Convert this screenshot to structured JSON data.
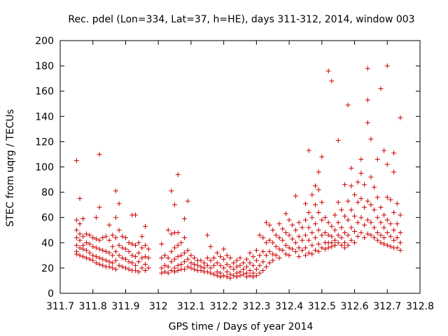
{
  "chart_data": {
    "type": "scatter",
    "title": "Rec. pdel (Lon=334, Lat=37, h=HE), days 311-312, 2014, window 003",
    "xlabel": "GPS time / Days of year 2014",
    "ylabel": "STEC from uqrg / TECUs",
    "xlim": [
      311.7,
      312.8
    ],
    "ylim": [
      0,
      200
    ],
    "x_ticks": [
      311.7,
      311.8,
      311.9,
      312.0,
      312.1,
      312.2,
      312.3,
      312.4,
      312.5,
      312.6,
      312.7,
      312.8
    ],
    "x_tick_labels": [
      "311.7",
      "311.8",
      "311.9",
      "312",
      "312.1",
      "312.2",
      "312.3",
      "312.4",
      "312.5",
      "312.6",
      "312.7",
      "312.8"
    ],
    "y_ticks": [
      0,
      20,
      40,
      60,
      80,
      100,
      120,
      140,
      160,
      180,
      200
    ],
    "y_tick_labels": [
      "0",
      "20",
      "40",
      "60",
      "80",
      "100",
      "120",
      "140",
      "160",
      "180",
      "200"
    ],
    "grid": false,
    "marker": "+",
    "color": "#cc0000",
    "points": [
      [
        311.75,
        105
      ],
      [
        311.76,
        75
      ],
      [
        311.82,
        110
      ],
      [
        311.87,
        81
      ],
      [
        311.88,
        71
      ],
      [
        311.92,
        62
      ],
      [
        311.96,
        53
      ],
      [
        312.04,
        81
      ],
      [
        312.05,
        70
      ],
      [
        312.06,
        94
      ],
      [
        312.08,
        59
      ],
      [
        312.09,
        73
      ],
      [
        312.46,
        113
      ],
      [
        312.48,
        85
      ],
      [
        312.49,
        96
      ],
      [
        312.5,
        108
      ],
      [
        312.52,
        176
      ],
      [
        312.53,
        168
      ],
      [
        312.55,
        121
      ],
      [
        312.57,
        86
      ],
      [
        312.58,
        149
      ],
      [
        312.59,
        99
      ],
      [
        312.62,
        106
      ],
      [
        312.64,
        178
      ],
      [
        312.64,
        153
      ],
      [
        312.64,
        135
      ],
      [
        312.65,
        122
      ],
      [
        312.67,
        106
      ],
      [
        312.68,
        162
      ],
      [
        312.69,
        113
      ],
      [
        312.7,
        180
      ],
      [
        312.7,
        102
      ],
      [
        312.72,
        96
      ],
      [
        312.72,
        111
      ],
      [
        312.74,
        139
      ],
      [
        311.75,
        58
      ],
      [
        311.75,
        50
      ],
      [
        311.75,
        44
      ],
      [
        311.75,
        38
      ],
      [
        311.75,
        33
      ],
      [
        311.75,
        31
      ],
      [
        311.76,
        55
      ],
      [
        311.76,
        47
      ],
      [
        311.76,
        42
      ],
      [
        311.76,
        36
      ],
      [
        311.76,
        30
      ],
      [
        311.77,
        59
      ],
      [
        311.77,
        45
      ],
      [
        311.77,
        38
      ],
      [
        311.77,
        35
      ],
      [
        311.77,
        29
      ],
      [
        311.78,
        47
      ],
      [
        311.78,
        40
      ],
      [
        311.78,
        34
      ],
      [
        311.78,
        28
      ],
      [
        311.79,
        46
      ],
      [
        311.79,
        39
      ],
      [
        311.79,
        32
      ],
      [
        311.79,
        27
      ],
      [
        311.8,
        44
      ],
      [
        311.8,
        37
      ],
      [
        311.8,
        30
      ],
      [
        311.8,
        26
      ],
      [
        311.81,
        60
      ],
      [
        311.81,
        43
      ],
      [
        311.81,
        36
      ],
      [
        311.81,
        29
      ],
      [
        311.81,
        24
      ],
      [
        311.82,
        68
      ],
      [
        311.82,
        42
      ],
      [
        311.82,
        35
      ],
      [
        311.82,
        28
      ],
      [
        311.82,
        23
      ],
      [
        311.83,
        44
      ],
      [
        311.83,
        34
      ],
      [
        311.83,
        27
      ],
      [
        311.83,
        22
      ],
      [
        311.84,
        45
      ],
      [
        311.84,
        33
      ],
      [
        311.84,
        26
      ],
      [
        311.84,
        21
      ],
      [
        311.85,
        54
      ],
      [
        311.85,
        42
      ],
      [
        311.85,
        32
      ],
      [
        311.85,
        25
      ],
      [
        311.85,
        21
      ],
      [
        311.86,
        46
      ],
      [
        311.86,
        37
      ],
      [
        311.86,
        30
      ],
      [
        311.86,
        24
      ],
      [
        311.86,
        20
      ],
      [
        311.87,
        60
      ],
      [
        311.87,
        44
      ],
      [
        311.87,
        33
      ],
      [
        311.87,
        26
      ],
      [
        311.87,
        19
      ],
      [
        311.88,
        50
      ],
      [
        311.88,
        38
      ],
      [
        311.88,
        30
      ],
      [
        311.88,
        22
      ],
      [
        311.89,
        45
      ],
      [
        311.89,
        36
      ],
      [
        311.89,
        28
      ],
      [
        311.89,
        21
      ],
      [
        311.9,
        44
      ],
      [
        311.9,
        35
      ],
      [
        311.9,
        27
      ],
      [
        311.9,
        20
      ],
      [
        311.91,
        40
      ],
      [
        311.91,
        33
      ],
      [
        311.91,
        25
      ],
      [
        311.91,
        19
      ],
      [
        311.92,
        39
      ],
      [
        311.92,
        30
      ],
      [
        311.92,
        24
      ],
      [
        311.92,
        18
      ],
      [
        311.93,
        62
      ],
      [
        311.93,
        38
      ],
      [
        311.93,
        29
      ],
      [
        311.93,
        22
      ],
      [
        311.93,
        18
      ],
      [
        311.94,
        40
      ],
      [
        311.94,
        32
      ],
      [
        311.94,
        25
      ],
      [
        311.94,
        17
      ],
      [
        311.95,
        45
      ],
      [
        311.95,
        36
      ],
      [
        311.95,
        28
      ],
      [
        311.95,
        20
      ],
      [
        311.96,
        38
      ],
      [
        311.96,
        29
      ],
      [
        311.96,
        23
      ],
      [
        311.96,
        18
      ],
      [
        311.97,
        35
      ],
      [
        311.97,
        28
      ],
      [
        311.97,
        20
      ],
      [
        312.01,
        39
      ],
      [
        312.01,
        28
      ],
      [
        312.01,
        20
      ],
      [
        312.01,
        16
      ],
      [
        312.02,
        30
      ],
      [
        312.02,
        22
      ],
      [
        312.02,
        17
      ],
      [
        312.03,
        50
      ],
      [
        312.03,
        28
      ],
      [
        312.03,
        21
      ],
      [
        312.03,
        16
      ],
      [
        312.04,
        47
      ],
      [
        312.04,
        33
      ],
      [
        312.04,
        25
      ],
      [
        312.04,
        18
      ],
      [
        312.05,
        48
      ],
      [
        312.05,
        36
      ],
      [
        312.05,
        27
      ],
      [
        312.05,
        20
      ],
      [
        312.05,
        17
      ],
      [
        312.06,
        48
      ],
      [
        312.06,
        38
      ],
      [
        312.06,
        29
      ],
      [
        312.06,
        22
      ],
      [
        312.06,
        18
      ],
      [
        312.07,
        40
      ],
      [
        312.07,
        30
      ],
      [
        312.07,
        23
      ],
      [
        312.07,
        19
      ],
      [
        312.08,
        44
      ],
      [
        312.08,
        32
      ],
      [
        312.08,
        25
      ],
      [
        312.08,
        19
      ],
      [
        312.09,
        34
      ],
      [
        312.09,
        27
      ],
      [
        312.09,
        21
      ],
      [
        312.1,
        30
      ],
      [
        312.1,
        24
      ],
      [
        312.1,
        20
      ],
      [
        312.11,
        28
      ],
      [
        312.11,
        23
      ],
      [
        312.11,
        19
      ],
      [
        312.12,
        26
      ],
      [
        312.12,
        22
      ],
      [
        312.12,
        18
      ],
      [
        312.13,
        26
      ],
      [
        312.13,
        21
      ],
      [
        312.13,
        18
      ],
      [
        312.14,
        24
      ],
      [
        312.14,
        20
      ],
      [
        312.14,
        17
      ],
      [
        312.15,
        46
      ],
      [
        312.15,
        28
      ],
      [
        312.15,
        22
      ],
      [
        312.15,
        17
      ],
      [
        312.16,
        37
      ],
      [
        312.16,
        26
      ],
      [
        312.16,
        20
      ],
      [
        312.16,
        16
      ],
      [
        312.17,
        28
      ],
      [
        312.17,
        22
      ],
      [
        312.17,
        15
      ],
      [
        312.18,
        32
      ],
      [
        312.18,
        24
      ],
      [
        312.18,
        17
      ],
      [
        312.18,
        14
      ],
      [
        312.19,
        29
      ],
      [
        312.19,
        22
      ],
      [
        312.19,
        16
      ],
      [
        312.19,
        13
      ],
      [
        312.2,
        35
      ],
      [
        312.2,
        27
      ],
      [
        312.2,
        20
      ],
      [
        312.2,
        14
      ],
      [
        312.21,
        30
      ],
      [
        312.21,
        23
      ],
      [
        312.21,
        17
      ],
      [
        312.21,
        13
      ],
      [
        312.22,
        28
      ],
      [
        312.22,
        21
      ],
      [
        312.22,
        15
      ],
      [
        312.22,
        12
      ],
      [
        312.23,
        24
      ],
      [
        312.23,
        19
      ],
      [
        312.23,
        14
      ],
      [
        312.24,
        26
      ],
      [
        312.24,
        21
      ],
      [
        312.24,
        16
      ],
      [
        312.24,
        13
      ],
      [
        312.25,
        28
      ],
      [
        312.25,
        22
      ],
      [
        312.25,
        17
      ],
      [
        312.25,
        14
      ],
      [
        312.26,
        24
      ],
      [
        312.26,
        19
      ],
      [
        312.26,
        15
      ],
      [
        312.27,
        27
      ],
      [
        312.27,
        21
      ],
      [
        312.27,
        16
      ],
      [
        312.27,
        13
      ],
      [
        312.28,
        32
      ],
      [
        312.28,
        24
      ],
      [
        312.28,
        18
      ],
      [
        312.28,
        14
      ],
      [
        312.29,
        29
      ],
      [
        312.29,
        22
      ],
      [
        312.29,
        16
      ],
      [
        312.29,
        13
      ],
      [
        312.3,
        34
      ],
      [
        312.3,
        26
      ],
      [
        312.3,
        19
      ],
      [
        312.3,
        14
      ],
      [
        312.31,
        46
      ],
      [
        312.31,
        30
      ],
      [
        312.31,
        22
      ],
      [
        312.31,
        16
      ],
      [
        312.32,
        44
      ],
      [
        312.32,
        33
      ],
      [
        312.32,
        25
      ],
      [
        312.32,
        18
      ],
      [
        312.33,
        56
      ],
      [
        312.33,
        40
      ],
      [
        312.33,
        30
      ],
      [
        312.33,
        21
      ],
      [
        312.34,
        54
      ],
      [
        312.34,
        42
      ],
      [
        312.34,
        33
      ],
      [
        312.34,
        24
      ],
      [
        312.35,
        50
      ],
      [
        312.35,
        40
      ],
      [
        312.35,
        31
      ],
      [
        312.35,
        26
      ],
      [
        312.36,
        46
      ],
      [
        312.36,
        37
      ],
      [
        312.36,
        30
      ],
      [
        312.37,
        55
      ],
      [
        312.37,
        44
      ],
      [
        312.37,
        35
      ],
      [
        312.37,
        28
      ],
      [
        312.38,
        51
      ],
      [
        312.38,
        42
      ],
      [
        312.38,
        34
      ],
      [
        312.39,
        63
      ],
      [
        312.39,
        48
      ],
      [
        312.39,
        38
      ],
      [
        312.39,
        31
      ],
      [
        312.4,
        58
      ],
      [
        312.4,
        46
      ],
      [
        312.4,
        36
      ],
      [
        312.4,
        30
      ],
      [
        312.41,
        54
      ],
      [
        312.41,
        43
      ],
      [
        312.41,
        35
      ],
      [
        312.42,
        77
      ],
      [
        312.42,
        50
      ],
      [
        312.42,
        40
      ],
      [
        312.42,
        33
      ],
      [
        312.43,
        56
      ],
      [
        312.43,
        45
      ],
      [
        312.43,
        36
      ],
      [
        312.43,
        29
      ],
      [
        312.44,
        52
      ],
      [
        312.44,
        42
      ],
      [
        312.44,
        34
      ],
      [
        312.45,
        71
      ],
      [
        312.45,
        58
      ],
      [
        312.45,
        46
      ],
      [
        312.45,
        36
      ],
      [
        312.45,
        30
      ],
      [
        312.46,
        64
      ],
      [
        312.46,
        52
      ],
      [
        312.46,
        42
      ],
      [
        312.46,
        32
      ],
      [
        312.47,
        78
      ],
      [
        312.47,
        60
      ],
      [
        312.47,
        48
      ],
      [
        312.47,
        38
      ],
      [
        312.47,
        31
      ],
      [
        312.48,
        70
      ],
      [
        312.48,
        55
      ],
      [
        312.48,
        44
      ],
      [
        312.48,
        34
      ],
      [
        312.49,
        82
      ],
      [
        312.49,
        64
      ],
      [
        312.49,
        50
      ],
      [
        312.49,
        39
      ],
      [
        312.49,
        33
      ],
      [
        312.5,
        72
      ],
      [
        312.5,
        58
      ],
      [
        312.5,
        46
      ],
      [
        312.5,
        36
      ],
      [
        312.51,
        60
      ],
      [
        312.51,
        48
      ],
      [
        312.51,
        40
      ],
      [
        312.51,
        35
      ],
      [
        312.52,
        56
      ],
      [
        312.52,
        46
      ],
      [
        312.52,
        40
      ],
      [
        312.52,
        36
      ],
      [
        312.53,
        53
      ],
      [
        312.53,
        45
      ],
      [
        312.53,
        40
      ],
      [
        312.53,
        37
      ],
      [
        312.54,
        62
      ],
      [
        312.54,
        50
      ],
      [
        312.54,
        42
      ],
      [
        312.54,
        38
      ],
      [
        312.55,
        72
      ],
      [
        312.55,
        56
      ],
      [
        312.55,
        46
      ],
      [
        312.55,
        40
      ],
      [
        312.56,
        66
      ],
      [
        312.56,
        52
      ],
      [
        312.56,
        44
      ],
      [
        312.56,
        38
      ],
      [
        312.57,
        61
      ],
      [
        312.57,
        48
      ],
      [
        312.57,
        40
      ],
      [
        312.57,
        36
      ],
      [
        312.58,
        73
      ],
      [
        312.58,
        58
      ],
      [
        312.58,
        46
      ],
      [
        312.58,
        38
      ],
      [
        312.59,
        85
      ],
      [
        312.59,
        66
      ],
      [
        312.59,
        52
      ],
      [
        312.59,
        42
      ],
      [
        312.6,
        78
      ],
      [
        312.6,
        61
      ],
      [
        312.6,
        49
      ],
      [
        312.6,
        40
      ],
      [
        312.61,
        88
      ],
      [
        312.61,
        72
      ],
      [
        312.61,
        56
      ],
      [
        312.61,
        45
      ],
      [
        312.62,
        95
      ],
      [
        312.62,
        75
      ],
      [
        312.62,
        60
      ],
      [
        312.62,
        48
      ],
      [
        312.63,
        86
      ],
      [
        312.63,
        68
      ],
      [
        312.63,
        54
      ],
      [
        312.63,
        44
      ],
      [
        312.64,
        73
      ],
      [
        312.64,
        58
      ],
      [
        312.64,
        47
      ],
      [
        312.65,
        92
      ],
      [
        312.65,
        70
      ],
      [
        312.65,
        56
      ],
      [
        312.65,
        46
      ],
      [
        312.66,
        84
      ],
      [
        312.66,
        66
      ],
      [
        312.66,
        52
      ],
      [
        312.66,
        44
      ],
      [
        312.67,
        76
      ],
      [
        312.67,
        60
      ],
      [
        312.67,
        48
      ],
      [
        312.67,
        42
      ],
      [
        312.68,
        68
      ],
      [
        312.68,
        56
      ],
      [
        312.68,
        46
      ],
      [
        312.68,
        40
      ],
      [
        312.69,
        62
      ],
      [
        312.69,
        52
      ],
      [
        312.69,
        44
      ],
      [
        312.69,
        39
      ],
      [
        312.7,
        76
      ],
      [
        312.7,
        58
      ],
      [
        312.7,
        48
      ],
      [
        312.7,
        38
      ],
      [
        312.71,
        74
      ],
      [
        312.71,
        55
      ],
      [
        312.71,
        45
      ],
      [
        312.71,
        37
      ],
      [
        312.72,
        64
      ],
      [
        312.72,
        50
      ],
      [
        312.72,
        42
      ],
      [
        312.72,
        36
      ],
      [
        312.73,
        71
      ],
      [
        312.73,
        55
      ],
      [
        312.73,
        44
      ],
      [
        312.73,
        36
      ],
      [
        312.74,
        62
      ],
      [
        312.74,
        48
      ],
      [
        312.74,
        40
      ],
      [
        312.74,
        34
      ]
    ]
  }
}
